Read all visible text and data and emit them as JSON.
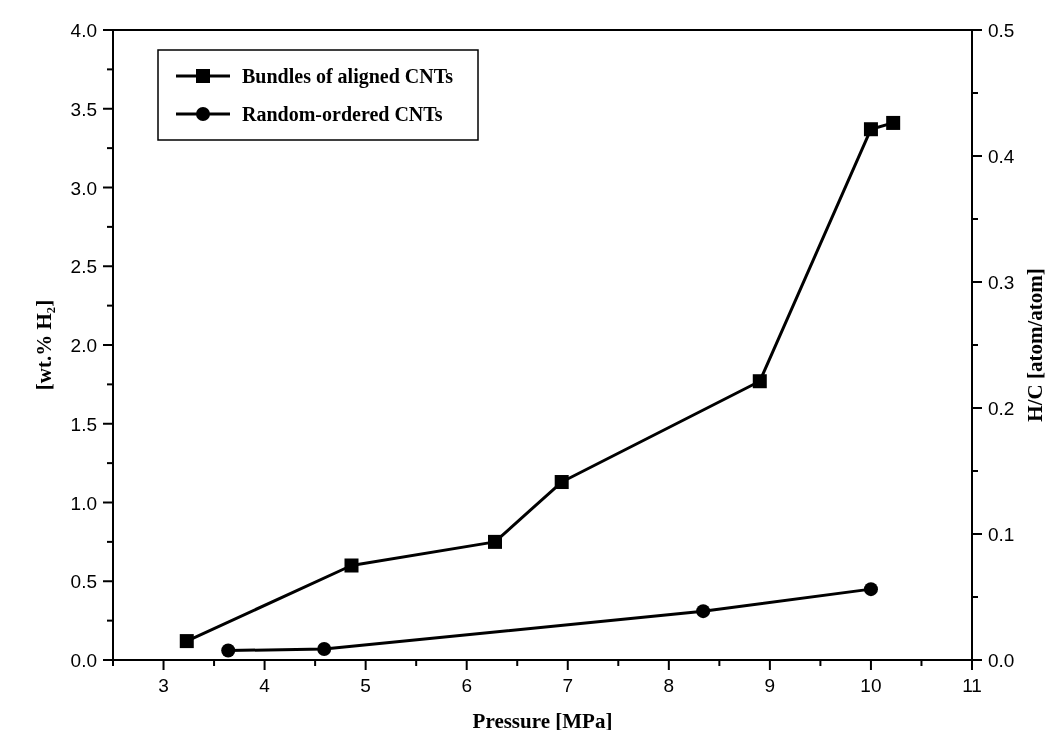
{
  "chart_data": {
    "type": "line",
    "xlabel": "Pressure [MPa]",
    "ylabel": "[wt.% H₂]",
    "y2label": "H/C [atom/atom]",
    "xlim": [
      2.5,
      11
    ],
    "xticks": [
      3,
      4,
      5,
      6,
      7,
      8,
      9,
      10,
      11
    ],
    "ylim": [
      0,
      4
    ],
    "yticks": [
      {
        "value": 0,
        "label": "0.0"
      },
      {
        "value": 0.5,
        "label": "0.5"
      },
      {
        "value": 1,
        "label": "1.0"
      },
      {
        "value": 1.5,
        "label": "1.5"
      },
      {
        "value": 2,
        "label": "2.0"
      },
      {
        "value": 2.5,
        "label": "2.5"
      },
      {
        "value": 3,
        "label": "3.0"
      },
      {
        "value": 3.5,
        "label": "3.5"
      },
      {
        "value": 4,
        "label": "4.0"
      }
    ],
    "y2lim": [
      0,
      0.5
    ],
    "y2ticks": [
      {
        "value": 0,
        "label": "0.0"
      },
      0.1,
      0.2,
      0.3,
      0.4,
      0.5
    ],
    "legend": "top left",
    "grid": false,
    "line_style": "solid",
    "series": [
      {
        "name": "Bundles of aligned CNTs",
        "color": "#000000",
        "marker": "square",
        "x": [
          3.23,
          4.86,
          6.28,
          6.94,
          8.9,
          10.0,
          10.22
        ],
        "values": [
          0.12,
          0.6,
          0.75,
          1.13,
          1.77,
          3.37,
          3.41
        ]
      },
      {
        "name": "Random-ordered CNTs",
        "color": "#000000",
        "marker": "circle",
        "x": [
          3.64,
          4.59,
          8.34,
          10.0
        ],
        "values": [
          0.06,
          0.07,
          0.31,
          0.45
        ]
      }
    ]
  }
}
